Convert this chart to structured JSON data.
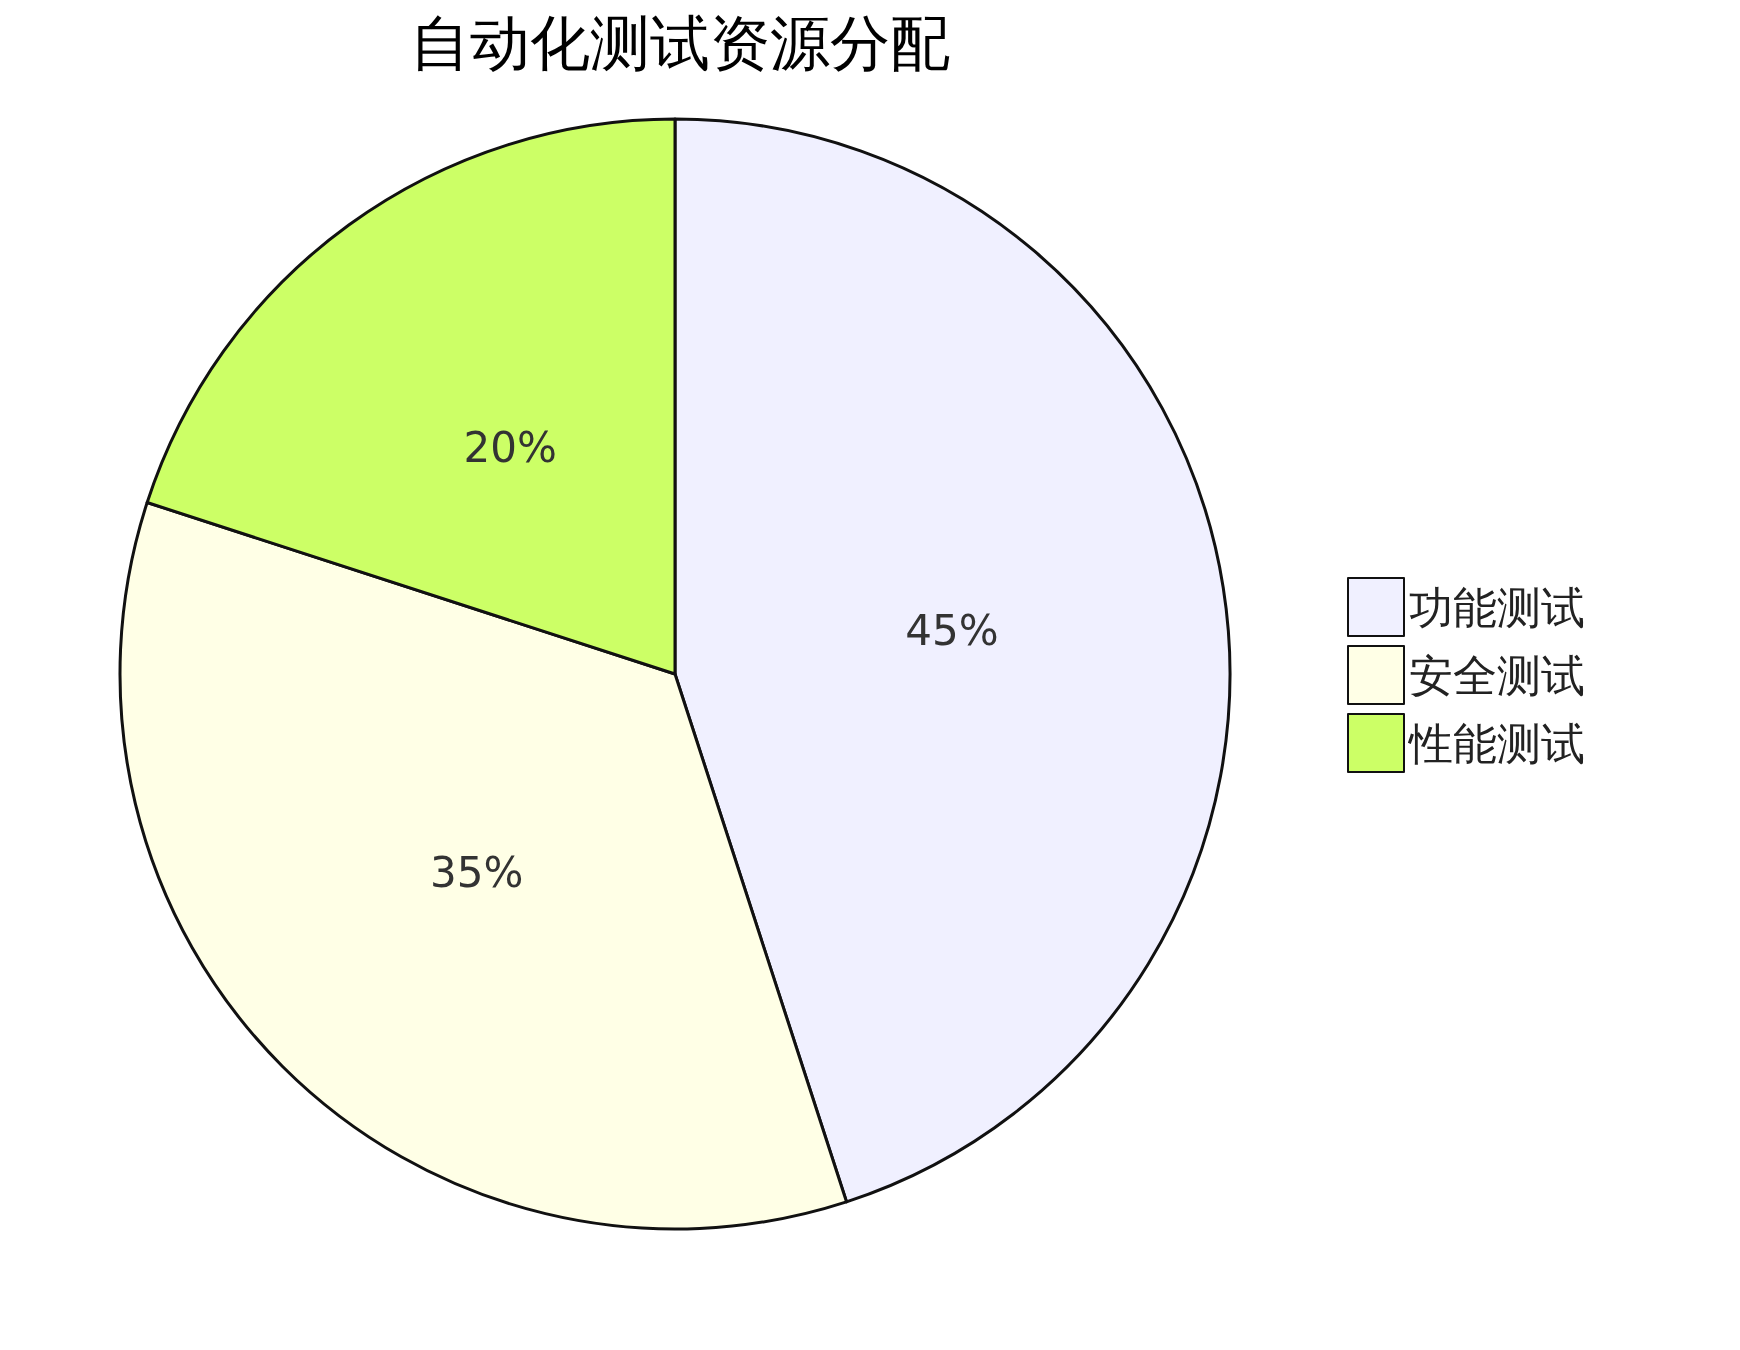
{
  "chart_data": {
    "type": "pie",
    "title": "自动化测试资源分配",
    "categories": [
      "功能测试",
      "安全测试",
      "性能测试"
    ],
    "values": [
      45,
      35,
      20
    ],
    "colors": [
      "#f0f0ff",
      "#ffffe6",
      "#ccff66"
    ],
    "value_labels": [
      "45%",
      "35%",
      "20%"
    ],
    "legend": "right"
  }
}
